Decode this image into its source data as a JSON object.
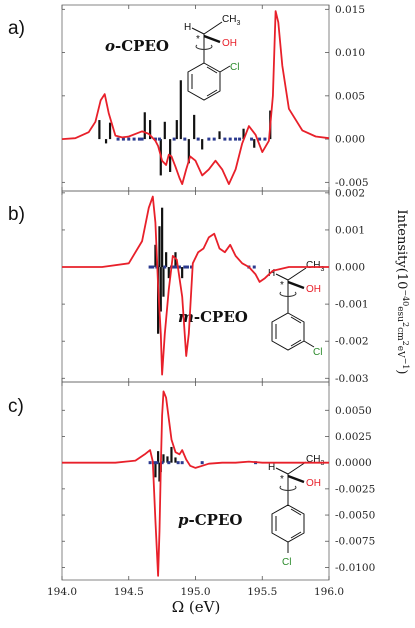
{
  "chart_data": {
    "type": "line",
    "xlabel": "Ω (eV)",
    "ylabel": "Intensity(10",
    "ylabel_exp": "−40",
    "ylabel_unit": "esu",
    "ylabel_sup2": "2",
    "ylabel_unit2": "cm",
    "ylabel_sup3": "2",
    "ylabel_unit3": "eV",
    "ylabel_sup4": "−1",
    "ylabel_close": ")",
    "xlim": [
      194.0,
      196.0
    ],
    "x_ticks": [
      194.0,
      194.5,
      195.0,
      195.5,
      196.0
    ],
    "x_tick_labels": [
      "194.0",
      "194.5",
      "195.0",
      "195.5",
      "196.0"
    ],
    "colors": {
      "curve": "#e8202a",
      "stick": "#111111",
      "dot": "#2b3a8f"
    },
    "panels": [
      {
        "label": "a)",
        "molecule": "o-CPEO",
        "mol_prefix": "o",
        "mol_suffix": "-CPEO",
        "substituent": "Cl",
        "atoms": {
          "h": "H",
          "ch3": "CH",
          "ch3_sub": "3",
          "oh": "OH",
          "star": "*"
        },
        "ylim": [
          -0.006,
          0.0155
        ],
        "y_ticks": [
          0.015,
          0.01,
          0.005,
          0.0,
          -0.005
        ],
        "y_tick_labels": [
          "0.015",
          "0.010",
          "0.005",
          "0.000",
          "-0.005"
        ],
        "curve": {
          "x": [
            194.0,
            194.1,
            194.2,
            194.25,
            194.29,
            194.32,
            194.35,
            194.4,
            194.45,
            194.5,
            194.55,
            194.6,
            194.65,
            194.7,
            194.72,
            194.75,
            194.78,
            194.8,
            194.82,
            194.85,
            194.88,
            194.9,
            194.93,
            194.96,
            195.0,
            195.05,
            195.1,
            195.15,
            195.2,
            195.25,
            195.3,
            195.35,
            195.4,
            195.45,
            195.5,
            195.55,
            195.58,
            195.6,
            195.62,
            195.65,
            195.7,
            195.8,
            195.9,
            196.0
          ],
          "y": [
            0.0,
            0.0001,
            0.0008,
            0.002,
            0.0045,
            0.0052,
            0.003,
            0.0004,
            0.0002,
            0.0003,
            0.0006,
            0.0009,
            0.0006,
            -0.0002,
            -0.0008,
            -0.0025,
            -0.003,
            -0.0018,
            -0.002,
            -0.0032,
            -0.0045,
            -0.0052,
            -0.0035,
            -0.002,
            -0.0025,
            -0.0042,
            -0.0035,
            -0.0025,
            -0.0035,
            -0.0052,
            -0.0035,
            -0.0005,
            0.0015,
            0.0005,
            -0.0015,
            -0.0002,
            0.005,
            0.0148,
            0.0135,
            0.0085,
            0.0035,
            0.001,
            0.0003,
            0.0001
          ]
        },
        "sticks": [
          {
            "x": 194.28,
            "y": 0.0022
          },
          {
            "x": 194.33,
            "y": -0.0005
          },
          {
            "x": 194.36,
            "y": 0.0019
          },
          {
            "x": 194.62,
            "y": 0.0031
          },
          {
            "x": 194.66,
            "y": 0.0022
          },
          {
            "x": 194.74,
            "y": -0.0042
          },
          {
            "x": 194.77,
            "y": 0.002
          },
          {
            "x": 194.81,
            "y": -0.0038
          },
          {
            "x": 194.86,
            "y": 0.0022
          },
          {
            "x": 194.89,
            "y": 0.0068
          },
          {
            "x": 194.95,
            "y": -0.0028
          },
          {
            "x": 194.99,
            "y": 0.0028
          },
          {
            "x": 195.05,
            "y": -0.0012
          },
          {
            "x": 195.18,
            "y": 0.0009
          },
          {
            "x": 195.36,
            "y": 0.0012
          },
          {
            "x": 195.44,
            "y": -0.001
          },
          {
            "x": 195.56,
            "y": 0.0033
          }
        ],
        "dots_x": [
          194.42,
          194.46,
          194.5,
          194.54,
          194.58,
          194.6,
          194.7,
          194.73,
          194.84,
          194.92,
          195.02,
          195.1,
          195.14,
          195.22,
          195.26,
          195.3,
          195.33,
          195.42,
          195.48,
          195.52
        ]
      },
      {
        "label": "b)",
        "molecule": "m-CPEO",
        "mol_prefix": "m",
        "mol_suffix": "-CPEO",
        "substituent": "Cl",
        "atoms": {
          "h": "H",
          "ch3": "CH",
          "ch3_sub": "3",
          "oh": "OH",
          "star": "*"
        },
        "ylim": [
          -0.0031,
          0.00205
        ],
        "y_ticks": [
          0.002,
          0.001,
          0.0,
          -0.001,
          -0.002,
          -0.003
        ],
        "y_tick_labels": [
          "0.002",
          "0.001",
          "0.000",
          "-0.001",
          "-0.002",
          "-0.003"
        ],
        "curve": {
          "x": [
            194.0,
            194.3,
            194.5,
            194.6,
            194.65,
            194.68,
            194.7,
            194.72,
            194.74,
            194.75,
            194.77,
            194.8,
            194.83,
            194.86,
            194.9,
            194.93,
            194.95,
            194.98,
            195.02,
            195.06,
            195.1,
            195.14,
            195.18,
            195.22,
            195.26,
            195.3,
            195.35,
            195.4,
            195.45,
            195.48,
            195.52,
            195.58,
            195.7,
            195.85,
            196.0
          ],
          "y": [
            0.0,
            0.0,
            0.0001,
            0.0007,
            0.0016,
            0.0019,
            0.0012,
            -0.0005,
            -0.0018,
            -0.0029,
            -0.0018,
            -0.0006,
            0.0003,
            0.0002,
            -0.0008,
            -0.0024,
            -0.0018,
            0.0001,
            0.0004,
            0.0005,
            0.0008,
            0.0009,
            0.0005,
            0.0004,
            0.0006,
            0.0003,
            0.0001,
            0.0,
            -0.0002,
            -0.0004,
            -0.0003,
            -0.0001,
            0.0,
            0.0,
            0.0
          ]
        },
        "sticks": [
          {
            "x": 194.7,
            "y": 0.0006
          },
          {
            "x": 194.72,
            "y": -0.0018
          },
          {
            "x": 194.73,
            "y": 0.0011
          },
          {
            "x": 194.74,
            "y": -0.0012
          },
          {
            "x": 194.75,
            "y": 0.0016
          },
          {
            "x": 194.76,
            "y": -0.0008
          },
          {
            "x": 194.78,
            "y": 0.0004
          },
          {
            "x": 194.8,
            "y": -0.0003
          },
          {
            "x": 194.85,
            "y": 0.0004
          },
          {
            "x": 194.9,
            "y": -0.0003
          }
        ],
        "dots_x": [
          194.66,
          194.68,
          194.71,
          194.77,
          194.82,
          194.84,
          194.86,
          194.88,
          194.92,
          194.94,
          194.97,
          195.4,
          195.44
        ]
      },
      {
        "label": "c)",
        "molecule": "p-CPEO",
        "mol_prefix": "p",
        "mol_suffix": "-CPEO",
        "substituent": "Cl",
        "atoms": {
          "h": "H",
          "ch3": "CH",
          "ch3_sub": "3",
          "oh": "OH",
          "star": "*"
        },
        "ylim": [
          -0.0112,
          0.0077
        ],
        "y_ticks": [
          0.005,
          0.0025,
          0.0,
          -0.0025,
          -0.005,
          -0.0075,
          -0.01
        ],
        "y_tick_labels": [
          "0.0050",
          "0.0025",
          "0.0000",
          "-0.0025",
          "-0.0050",
          "-0.0075",
          "-0.0100"
        ],
        "curve": {
          "x": [
            194.0,
            194.4,
            194.55,
            194.62,
            194.66,
            194.68,
            194.7,
            194.72,
            194.73,
            194.74,
            194.75,
            194.76,
            194.78,
            194.8,
            194.82,
            194.85,
            194.88,
            194.9,
            194.93,
            194.96,
            195.0,
            195.05,
            195.1,
            195.2,
            195.3,
            195.4,
            195.5,
            195.7,
            196.0
          ],
          "y": [
            0.0,
            0.0,
            0.0002,
            0.0008,
            0.0012,
            0.0001,
            -0.0055,
            -0.0108,
            -0.0065,
            -0.0005,
            0.0045,
            0.0068,
            0.0062,
            0.0042,
            0.0022,
            0.001,
            0.0008,
            0.0012,
            0.0003,
            -0.0003,
            -0.0005,
            -0.0003,
            -0.0001,
            0.0,
            0.0,
            0.0001,
            0.0,
            0.0,
            0.0
          ]
        },
        "sticks": [
          {
            "x": 194.7,
            "y": -0.0014
          },
          {
            "x": 194.72,
            "y": 0.0011
          },
          {
            "x": 194.73,
            "y": -0.0018
          },
          {
            "x": 194.74,
            "y": -0.0009
          },
          {
            "x": 194.76,
            "y": 0.0008
          },
          {
            "x": 194.79,
            "y": 0.0006
          },
          {
            "x": 194.82,
            "y": 0.0015
          },
          {
            "x": 194.85,
            "y": 0.0005
          }
        ],
        "dots_x": [
          194.66,
          194.69,
          194.71,
          194.75,
          194.8,
          194.87,
          194.9,
          195.05,
          195.45
        ]
      }
    ]
  }
}
